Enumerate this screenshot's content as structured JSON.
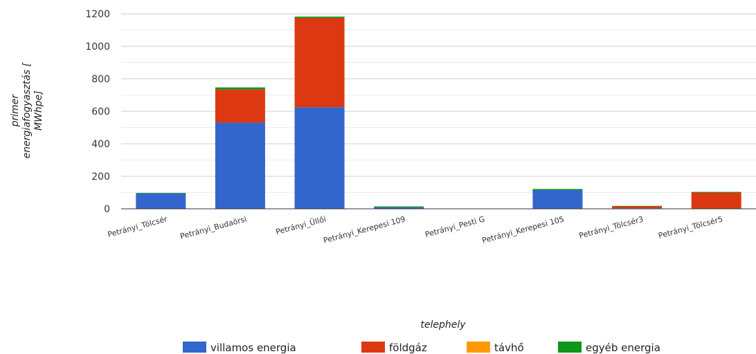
{
  "chart_data": {
    "type": "bar",
    "stacked": true,
    "categories": [
      "Petrányi_Tölcsér",
      "Petrányi_Budaörsi",
      "Petrányi_Üllői",
      "Petrányi_Kerepesi 109",
      "Petrányi_Pesti G",
      "Petrányi_Kerepesi 105",
      "Petrányi_Tölcsér3",
      "Petrányi_Tölcsér5"
    ],
    "series": [
      {
        "name": "villamos energia",
        "color": "#3366cc",
        "values": [
          95,
          530,
          625,
          10,
          0,
          115,
          3,
          0
        ]
      },
      {
        "name": "földgáz",
        "color": "#dc3912",
        "values": [
          0,
          205,
          550,
          0,
          0,
          0,
          12,
          100
        ]
      },
      {
        "name": "távhő",
        "color": "#ff9900",
        "values": [
          0,
          0,
          0,
          0,
          0,
          0,
          0,
          0
        ]
      },
      {
        "name": "egyéb energia",
        "color": "#109618",
        "values": [
          3,
          12,
          8,
          5,
          0,
          7,
          3,
          4
        ]
      }
    ],
    "ylabel": "primer energiafogyasztás [ MWhpe]",
    "ylabel_lines": [
      "primer",
      "energiafogyasztás [",
      "MWhpe]"
    ],
    "xlabel": "telephely",
    "ylim": [
      0,
      1200
    ],
    "yticks": [
      0,
      200,
      400,
      600,
      800,
      1000,
      1200
    ],
    "grid": true,
    "legend_position": "bottom"
  }
}
